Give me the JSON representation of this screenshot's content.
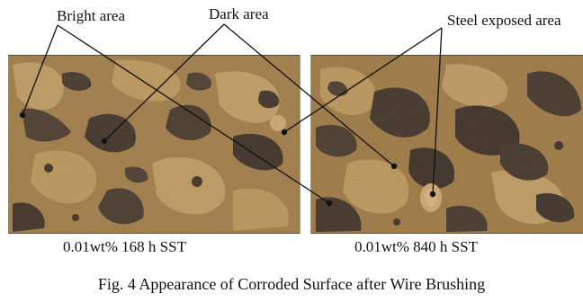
{
  "labels": {
    "bright_area": "Bright area",
    "dark_area": "Dark area",
    "steel_exposed_area": "Steel exposed area"
  },
  "panels": [
    {
      "caption": "0.01wt% 168 h SST"
    },
    {
      "caption": "0.01wt% 840 h SST"
    }
  ],
  "figure_caption": "Fig. 4 Appearance of Corroded Surface after Wire Brushing",
  "colors": {
    "rust_base": "#a9844e",
    "bright_patch": "#c9a66b",
    "dark_patch": "#3f342b",
    "steel_spot": "#d9b27a",
    "leader_line": "#111111"
  }
}
